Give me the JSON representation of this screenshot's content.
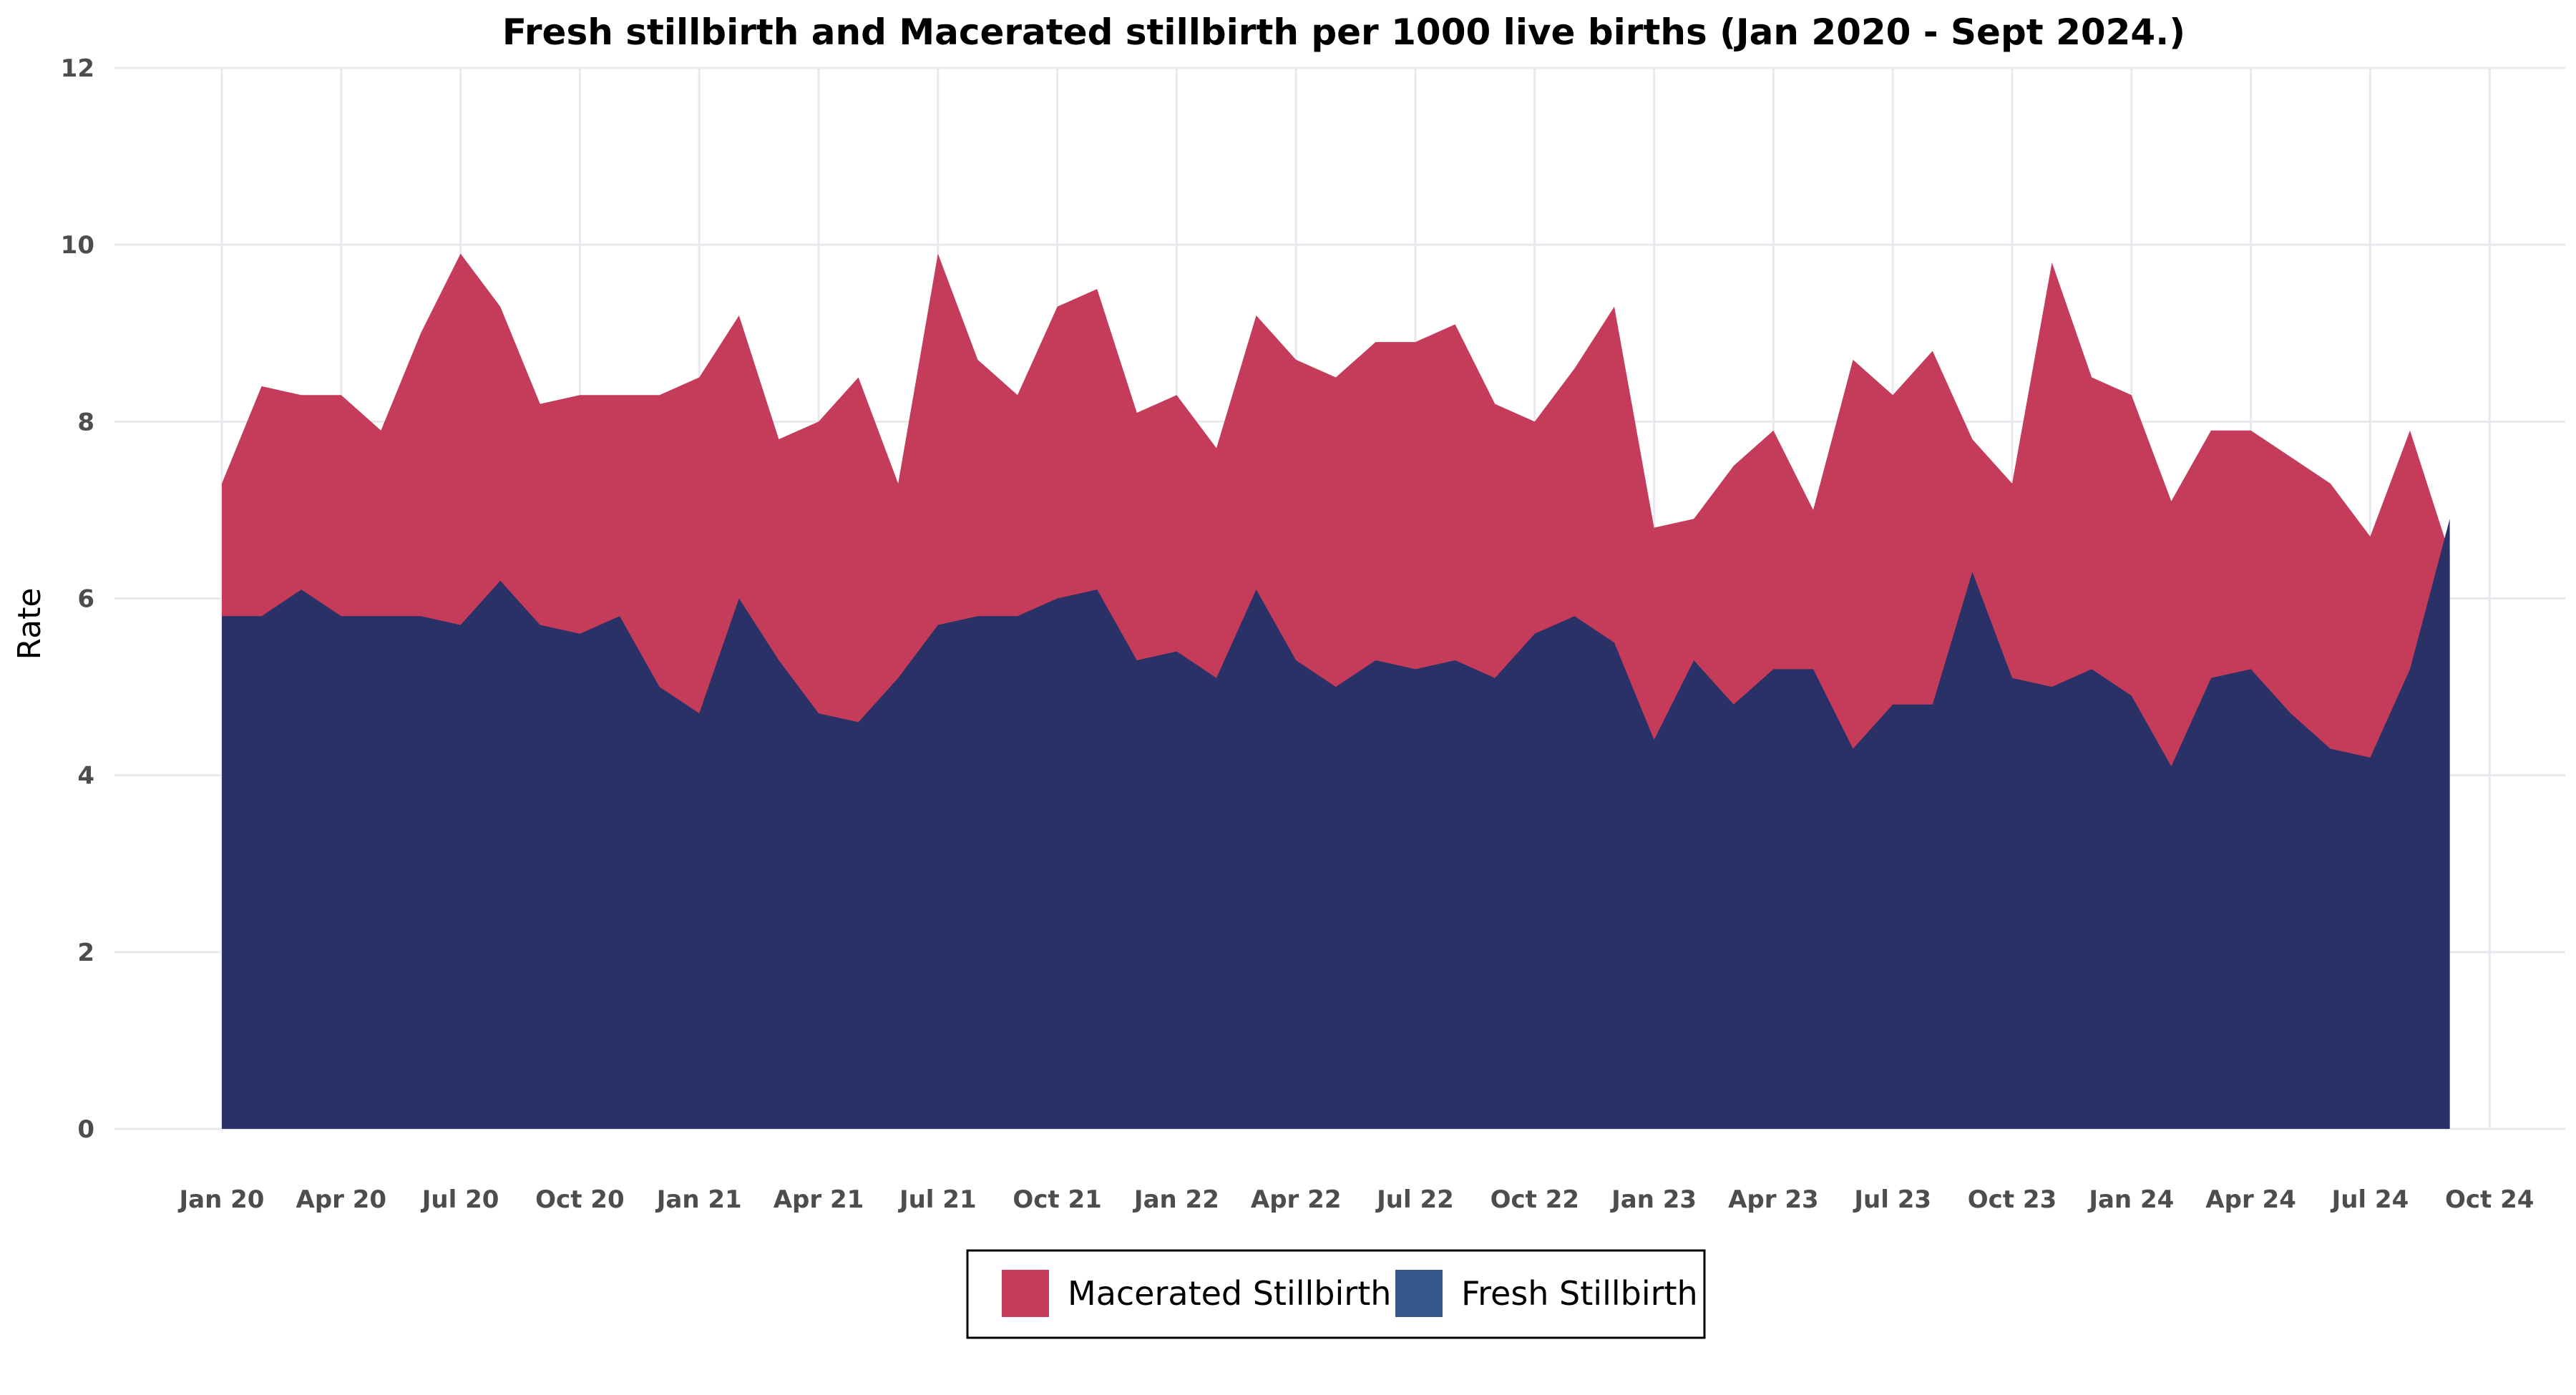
{
  "chart_data": {
    "type": "area",
    "title": "Fresh stillbirth and Macerated stillbirth per 1000 live births (Jan 2020 - Sept 2024.)",
    "xlabel": "",
    "ylabel": "Rate",
    "ylim": [
      0,
      12
    ],
    "yticks": [
      0,
      2,
      4,
      6,
      8,
      10,
      12
    ],
    "xticks": [
      "Jan 20",
      "Apr 20",
      "Jul 20",
      "Oct 20",
      "Jan 21",
      "Apr 21",
      "Jul 21",
      "Oct 21",
      "Jan 22",
      "Apr 22",
      "Jul 22",
      "Oct 22",
      "Jan 23",
      "Apr 23",
      "Jul 23",
      "Oct 23",
      "Jan 24",
      "Apr 24",
      "Jul 24",
      "Oct 24"
    ],
    "x_start": "Jan 2020",
    "x_end_tick": "Oct 24",
    "stacked": true,
    "grid": true,
    "legend_position": "bottom",
    "series": [
      {
        "name": "Macerated Stillbirth",
        "color": "#c43c5a",
        "total_values": [
          7.3,
          8.4,
          8.3,
          8.3,
          7.9,
          9.0,
          9.9,
          9.3,
          8.2,
          8.3,
          8.3,
          8.3,
          8.5,
          9.2,
          7.8,
          8.0,
          8.5,
          7.3,
          9.9,
          8.7,
          8.3,
          9.3,
          9.5,
          8.1,
          8.3,
          7.7,
          9.2,
          8.7,
          8.5,
          8.9,
          8.9,
          9.1,
          8.2,
          8.0,
          8.6,
          9.3,
          6.8,
          6.9,
          7.5,
          7.9,
          7.0,
          8.7,
          8.3,
          8.8,
          7.8,
          7.3,
          9.8,
          8.5,
          8.3,
          7.1,
          7.9,
          7.9,
          7.6,
          7.3,
          6.7,
          7.9,
          6.5
        ]
      },
      {
        "name": "Fresh Stillbirth",
        "color": "#2a3166",
        "legend_color": "#35578a",
        "values": [
          5.8,
          5.8,
          6.1,
          5.8,
          5.8,
          5.8,
          5.7,
          6.2,
          5.7,
          5.6,
          5.8,
          5.0,
          4.7,
          6.0,
          5.3,
          4.7,
          4.6,
          5.1,
          5.7,
          5.8,
          5.8,
          6.0,
          6.1,
          5.3,
          5.4,
          5.1,
          6.1,
          5.3,
          5.0,
          5.3,
          5.2,
          5.3,
          5.1,
          5.6,
          5.8,
          5.5,
          4.4,
          5.3,
          4.8,
          5.2,
          5.2,
          4.3,
          4.8,
          4.8,
          6.3,
          5.1,
          5.0,
          5.2,
          4.9,
          4.1,
          5.1,
          5.2,
          4.7,
          4.3,
          4.2,
          5.2,
          6.9
        ]
      }
    ]
  }
}
